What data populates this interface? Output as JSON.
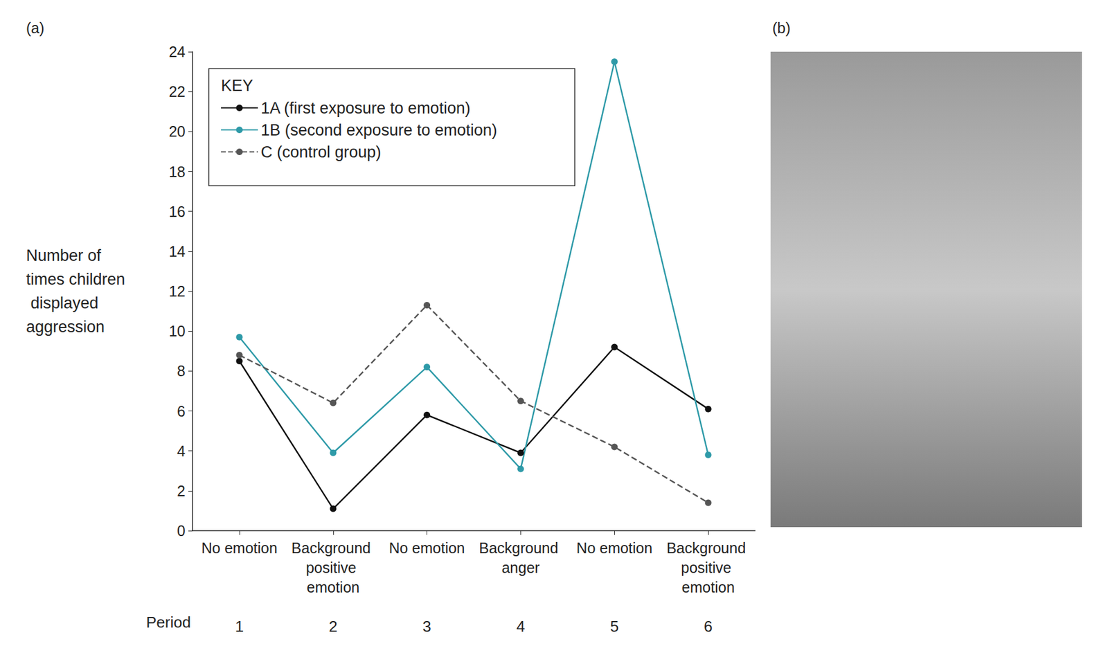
{
  "chart_data": {
    "type": "line",
    "annotations": [
      "(a)",
      "(b)"
    ],
    "ylabel": "Number of times children displayed aggression",
    "xlabel": "Period",
    "periods": [
      1,
      2,
      3,
      4,
      5,
      6
    ],
    "categories": [
      "No emotion",
      "Background positive emotion",
      "No emotion",
      "Background anger",
      "No emotion",
      "Background positive emotion"
    ],
    "series": [
      {
        "name": "1A (first exposure to emotion)",
        "color": "#111111",
        "marker": "circle",
        "line_style": "solid",
        "values": [
          8.5,
          1.1,
          5.8,
          3.9,
          9.2,
          6.1
        ]
      },
      {
        "name": "1B (second exposure to emotion)",
        "color": "#2e9aa8",
        "marker": "circle",
        "line_style": "solid",
        "values": [
          9.7,
          3.9,
          8.2,
          3.1,
          23.5,
          3.8
        ]
      },
      {
        "name": "C (control group)",
        "color": "#555555",
        "marker": "circle",
        "line_style": "dashed",
        "values": [
          8.8,
          6.4,
          11.3,
          6.5,
          4.2,
          1.4
        ]
      }
    ],
    "ylim": [
      0,
      24
    ],
    "yticks": [
      0,
      2,
      4,
      6,
      8,
      10,
      12,
      14,
      16,
      18,
      20,
      22,
      24
    ],
    "grid": false,
    "legend": "upper left",
    "legend_title": "KEY"
  }
}
